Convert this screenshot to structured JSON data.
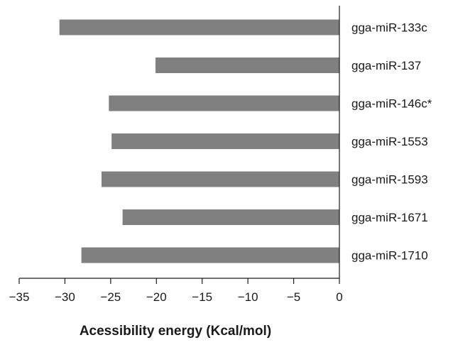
{
  "chart_data": {
    "type": "bar",
    "orientation": "horizontal",
    "title": "",
    "xlabel": "Acessibility energy (Kcal/mol)",
    "ylabel": "",
    "categories": [
      "gga-miR-133c",
      "gga-miR-137",
      "gga-miR-146c*",
      "gga-miR-1553",
      "gga-miR-1593",
      "gga-miR-1671",
      "gga-miR-1710"
    ],
    "values": [
      -30.6,
      -20.1,
      -25.2,
      -24.9,
      -26.0,
      -23.7,
      -28.2
    ],
    "xlim": [
      -35,
      0
    ],
    "xticks": [
      -35,
      -30,
      -25,
      -20,
      -15,
      -10,
      -5,
      0
    ],
    "xtick_labels": [
      "−35",
      "−30",
      "−25",
      "−20",
      "−15",
      "−10",
      "−5",
      "0"
    ],
    "bar_color": "#808080",
    "grid": false,
    "legend": "none"
  }
}
